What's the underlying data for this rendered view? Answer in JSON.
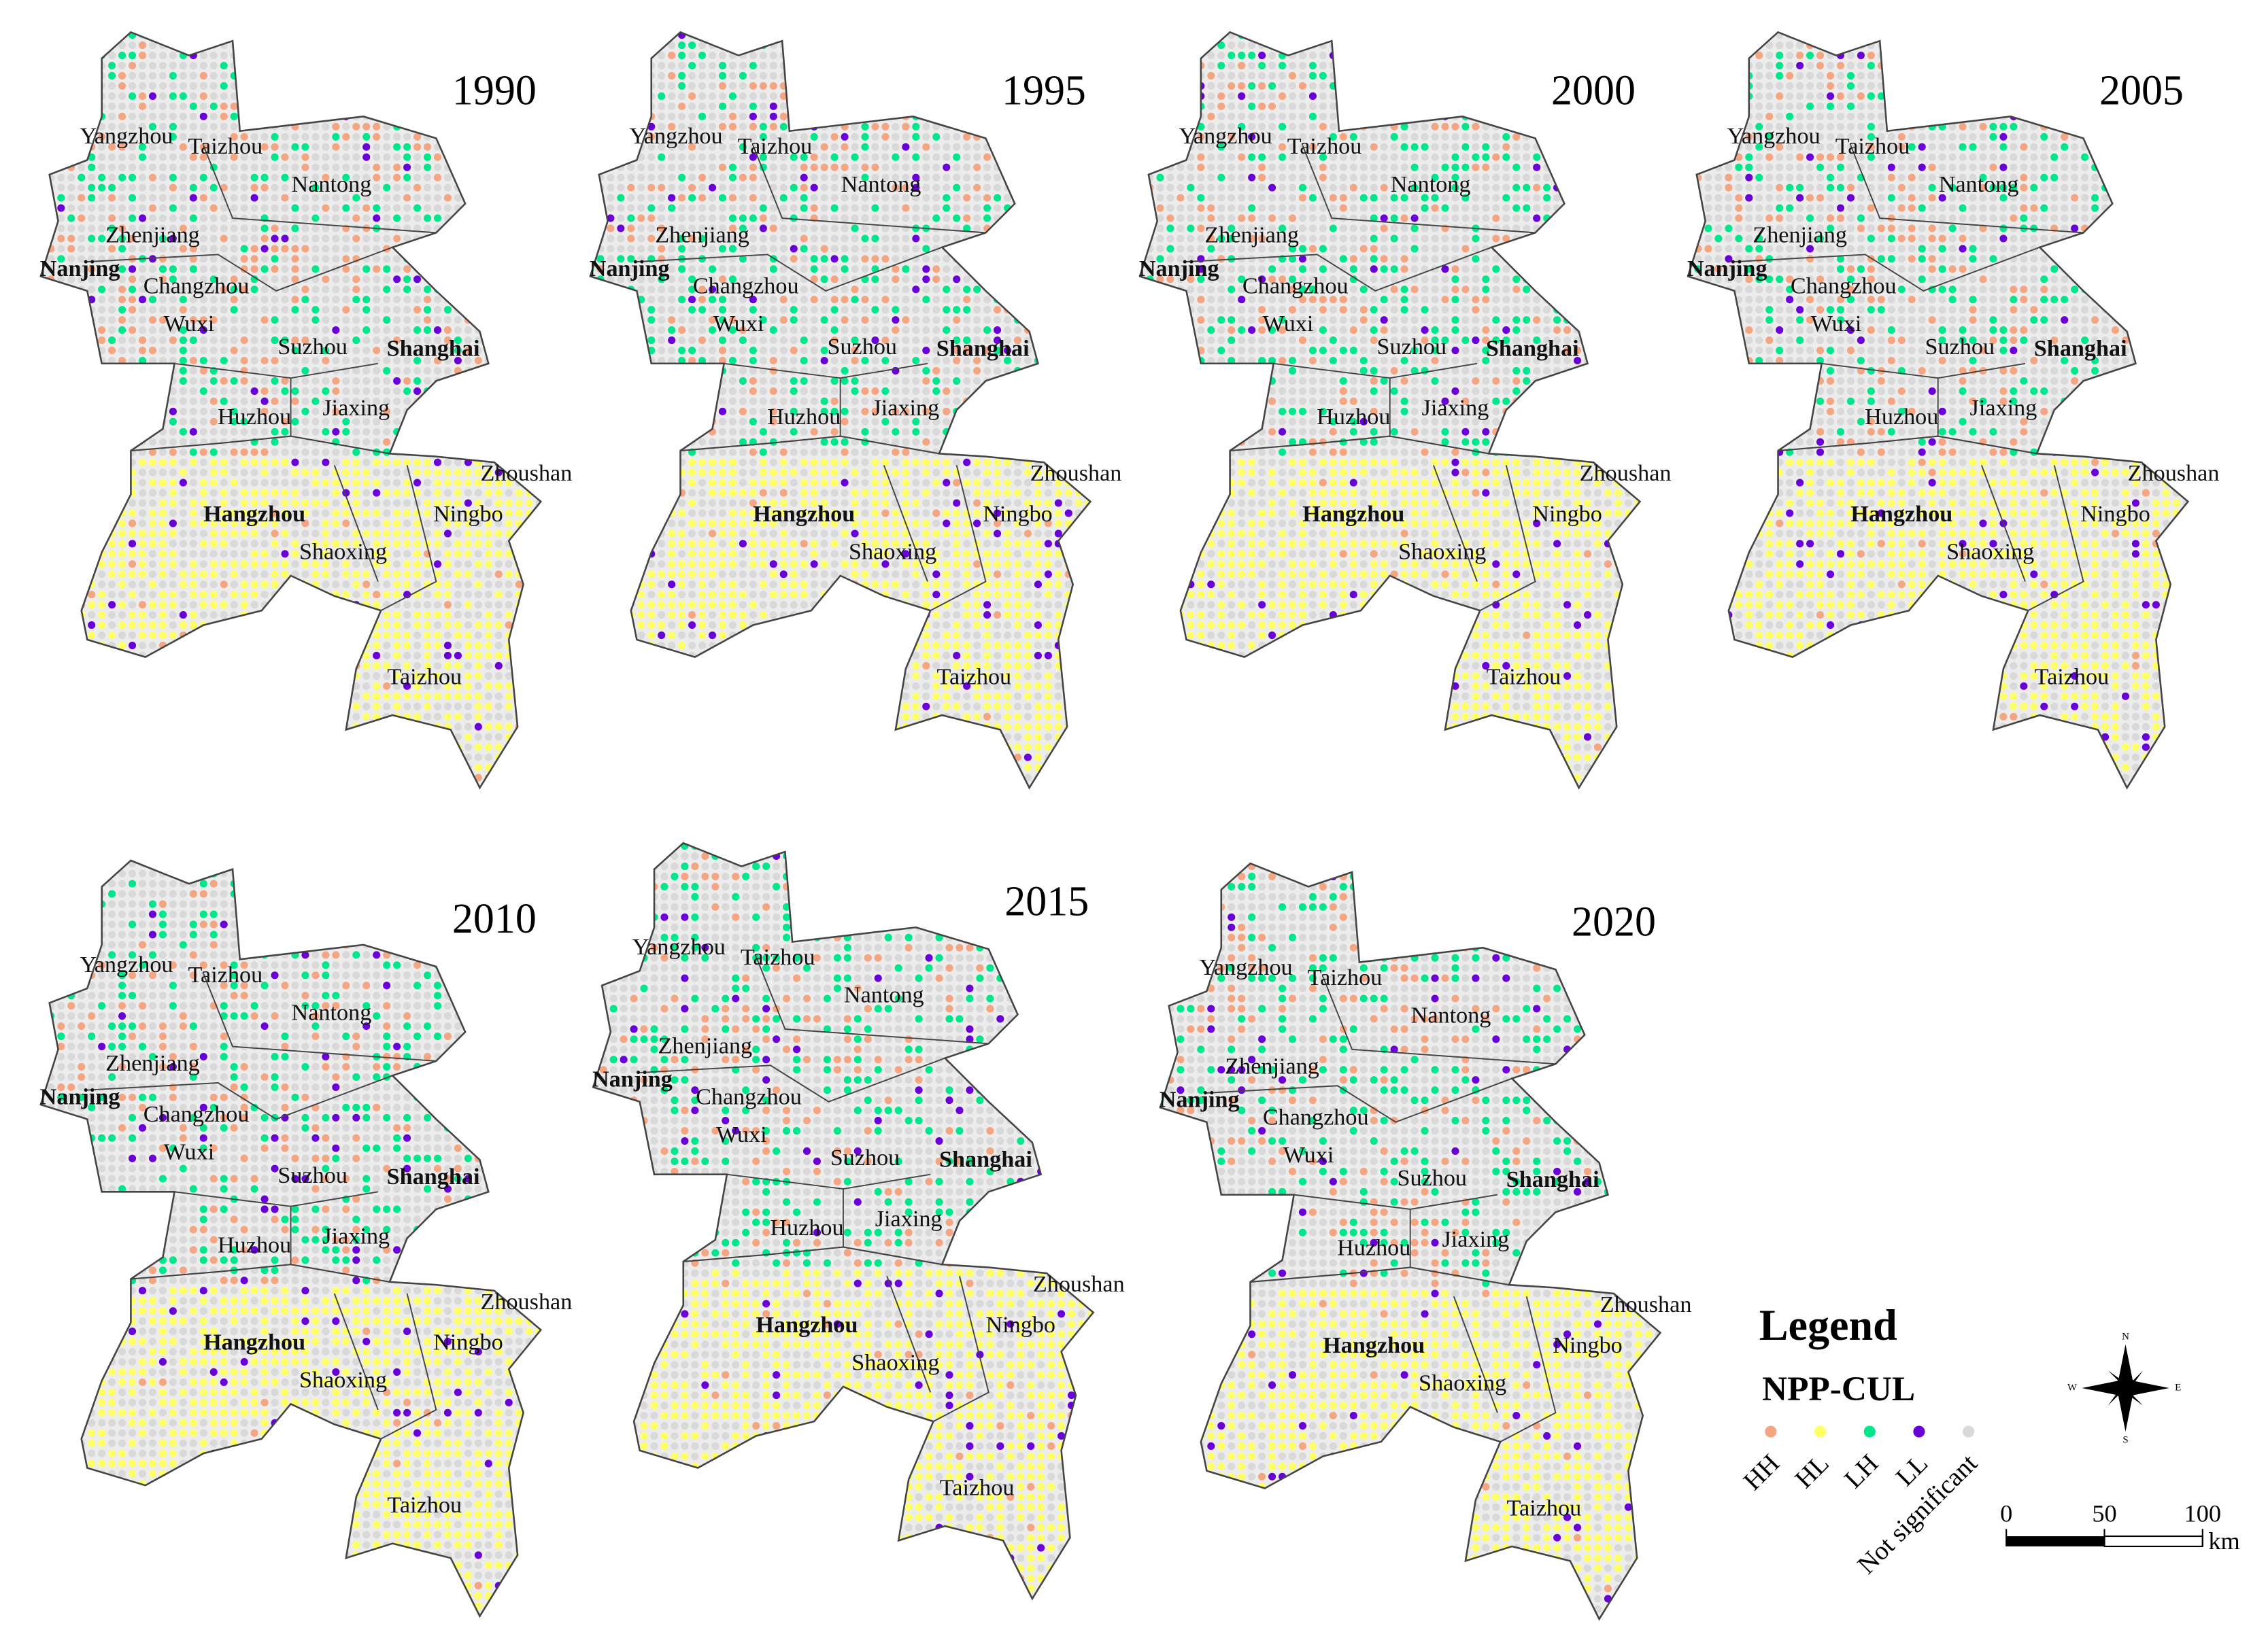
{
  "panels": [
    {
      "year": "1990"
    },
    {
      "year": "1995"
    },
    {
      "year": "2000"
    },
    {
      "year": "2005"
    },
    {
      "year": "2010"
    },
    {
      "year": "2015"
    },
    {
      "year": "2020"
    }
  ],
  "cities": [
    {
      "name": "Yangzhou"
    },
    {
      "name": "Taizhou"
    },
    {
      "name": "Nantong"
    },
    {
      "name": "Zhenjiang"
    },
    {
      "name": "Nanjing"
    },
    {
      "name": "Changzhou"
    },
    {
      "name": "Wuxi"
    },
    {
      "name": "Suzhou"
    },
    {
      "name": "Shanghai"
    },
    {
      "name": "Huzhou"
    },
    {
      "name": "Jiaxing"
    },
    {
      "name": "Zhoushan"
    },
    {
      "name": "Hangzhou"
    },
    {
      "name": "Ningbo"
    },
    {
      "name": "Shaoxing"
    },
    {
      "name": "Taizhou"
    }
  ],
  "legend": {
    "title": "Legend",
    "subtitle": "NPP-CUL",
    "items": [
      {
        "label": "HH",
        "color": "#f4a582"
      },
      {
        "label": "HL",
        "color": "#ffff66"
      },
      {
        "label": "LH",
        "color": "#00e68a"
      },
      {
        "label": "LL",
        "color": "#6a00d8"
      },
      {
        "label": "Not significant",
        "color": "#d9d9d9"
      }
    ]
  },
  "compass": {
    "n": "N",
    "e": "E",
    "s": "S",
    "w": "W"
  },
  "scale_bar": {
    "ticks": [
      0,
      50,
      100
    ],
    "unit": "km"
  }
}
